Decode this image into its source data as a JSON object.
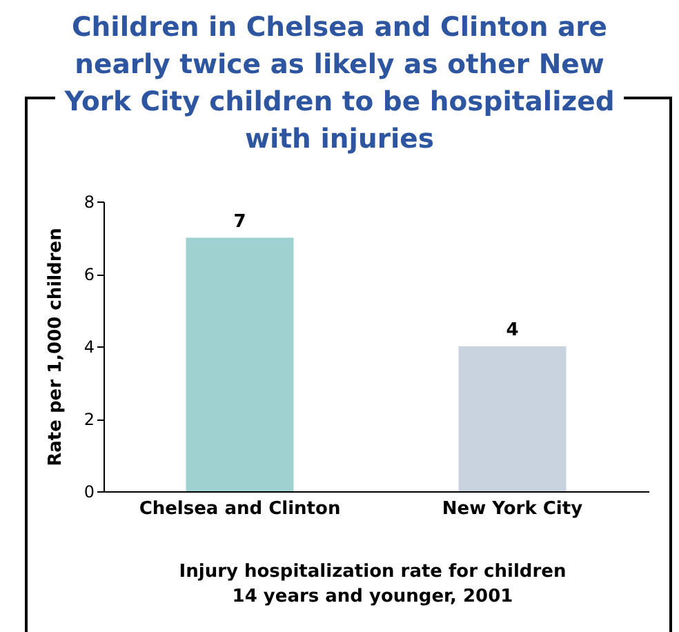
{
  "chart_data": {
    "type": "bar",
    "title": "Children in Chelsea and Clinton are nearly twice as likely as other New York City children to be hospitalized with injuries",
    "categories": [
      "Chelsea and Clinton",
      "New York City"
    ],
    "values": [
      7,
      4
    ],
    "colors": [
      "#9fd1d0",
      "#c9d3df"
    ],
    "ylabel": "Rate per 1,000 children",
    "xlabel": "Injury hospitalization rate for children 14 years and younger, 2001",
    "ylim": [
      0,
      8
    ],
    "yticks": [
      0,
      2,
      4,
      6,
      8
    ],
    "data_labels": true
  }
}
